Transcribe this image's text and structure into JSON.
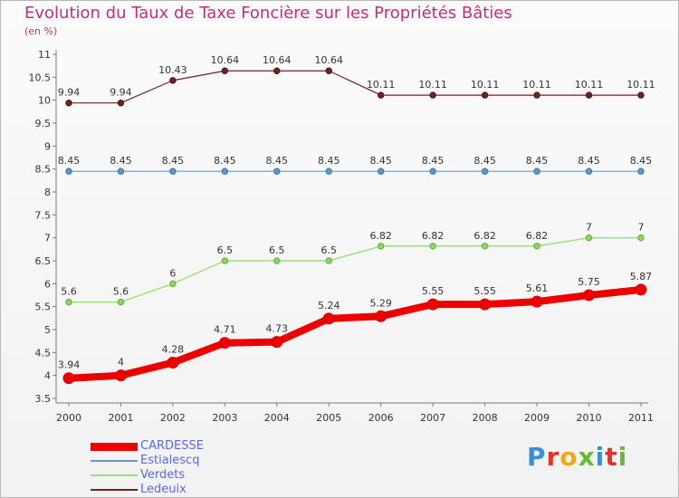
{
  "title": "Evolution du Taux de Taxe Foncière sur les Propriétés Bâties",
  "unit_label": "(en %)",
  "logo_text": "Proxiti",
  "logo_colors": [
    "#3a8fd6",
    "#e6302a",
    "#f2a81d",
    "#68b93a",
    "#3a8fd6",
    "#e6302a",
    "#68b93a"
  ],
  "chart_data": {
    "type": "line",
    "title": "Evolution du Taux de Taxe Foncière sur les Propriétés Bâties",
    "ylabel": "(en %)",
    "xlabel": "",
    "ylim": [
      3.5,
      11
    ],
    "yticks": [
      "3.5",
      "4",
      "4.5",
      "5",
      "5.5",
      "6",
      "6.5",
      "7",
      "7.5",
      "8",
      "8.5",
      "9",
      "9.5",
      "10",
      "10.5",
      "11"
    ],
    "x": [
      "2000",
      "2001",
      "2002",
      "2003",
      "2004",
      "2005",
      "2006",
      "2007",
      "2008",
      "2009",
      "2010",
      "2011"
    ],
    "grid": false,
    "legend": "bottom-left",
    "series": [
      {
        "name": "Ledeuix",
        "color": "#6e2424",
        "values": [
          9.94,
          9.94,
          10.43,
          10.64,
          10.64,
          10.64,
          10.11,
          10.11,
          10.11,
          10.11,
          10.11,
          10.11
        ],
        "labels": [
          "9.94",
          "9.94",
          "10.43",
          "10.64",
          "10.64",
          "10.64",
          "10.11",
          "10.11",
          "10.11",
          "10.11",
          "10.11",
          "10.11"
        ]
      },
      {
        "name": "Estialescq",
        "color": "#6b9ac6",
        "values": [
          8.45,
          8.45,
          8.45,
          8.45,
          8.45,
          8.45,
          8.45,
          8.45,
          8.45,
          8.45,
          8.45,
          8.45
        ],
        "labels": [
          "8.45",
          "8.45",
          "8.45",
          "8.45",
          "8.45",
          "8.45",
          "8.45",
          "8.45",
          "8.45",
          "8.45",
          "8.45",
          "8.45"
        ]
      },
      {
        "name": "Verdets",
        "color": "#9fdf77",
        "values": [
          5.6,
          5.6,
          6,
          6.5,
          6.5,
          6.5,
          6.82,
          6.82,
          6.82,
          6.82,
          7,
          7
        ],
        "labels": [
          "5.6",
          "5.6",
          "6",
          "6.5",
          "6.5",
          "6.5",
          "6.82",
          "6.82",
          "6.82",
          "6.82",
          "7",
          "7"
        ]
      },
      {
        "name": "CARDESSE",
        "color": "#ee0000",
        "values": [
          3.94,
          4,
          4.28,
          4.71,
          4.73,
          5.24,
          5.29,
          5.55,
          5.55,
          5.61,
          5.75,
          5.87
        ],
        "labels": [
          "3.94",
          "4",
          "4.28",
          "4.71",
          "4.73",
          "5.24",
          "5.29",
          "5.55",
          "5.55",
          "5.61",
          "5.75",
          "5.87"
        ]
      }
    ]
  },
  "legend": [
    {
      "name": "CARDESSE",
      "color": "#ee0000"
    },
    {
      "name": "Estialescq",
      "color": "#6b9ac6"
    },
    {
      "name": "Verdets",
      "color": "#9fdf77"
    },
    {
      "name": "Ledeuix",
      "color": "#6e2424"
    }
  ]
}
